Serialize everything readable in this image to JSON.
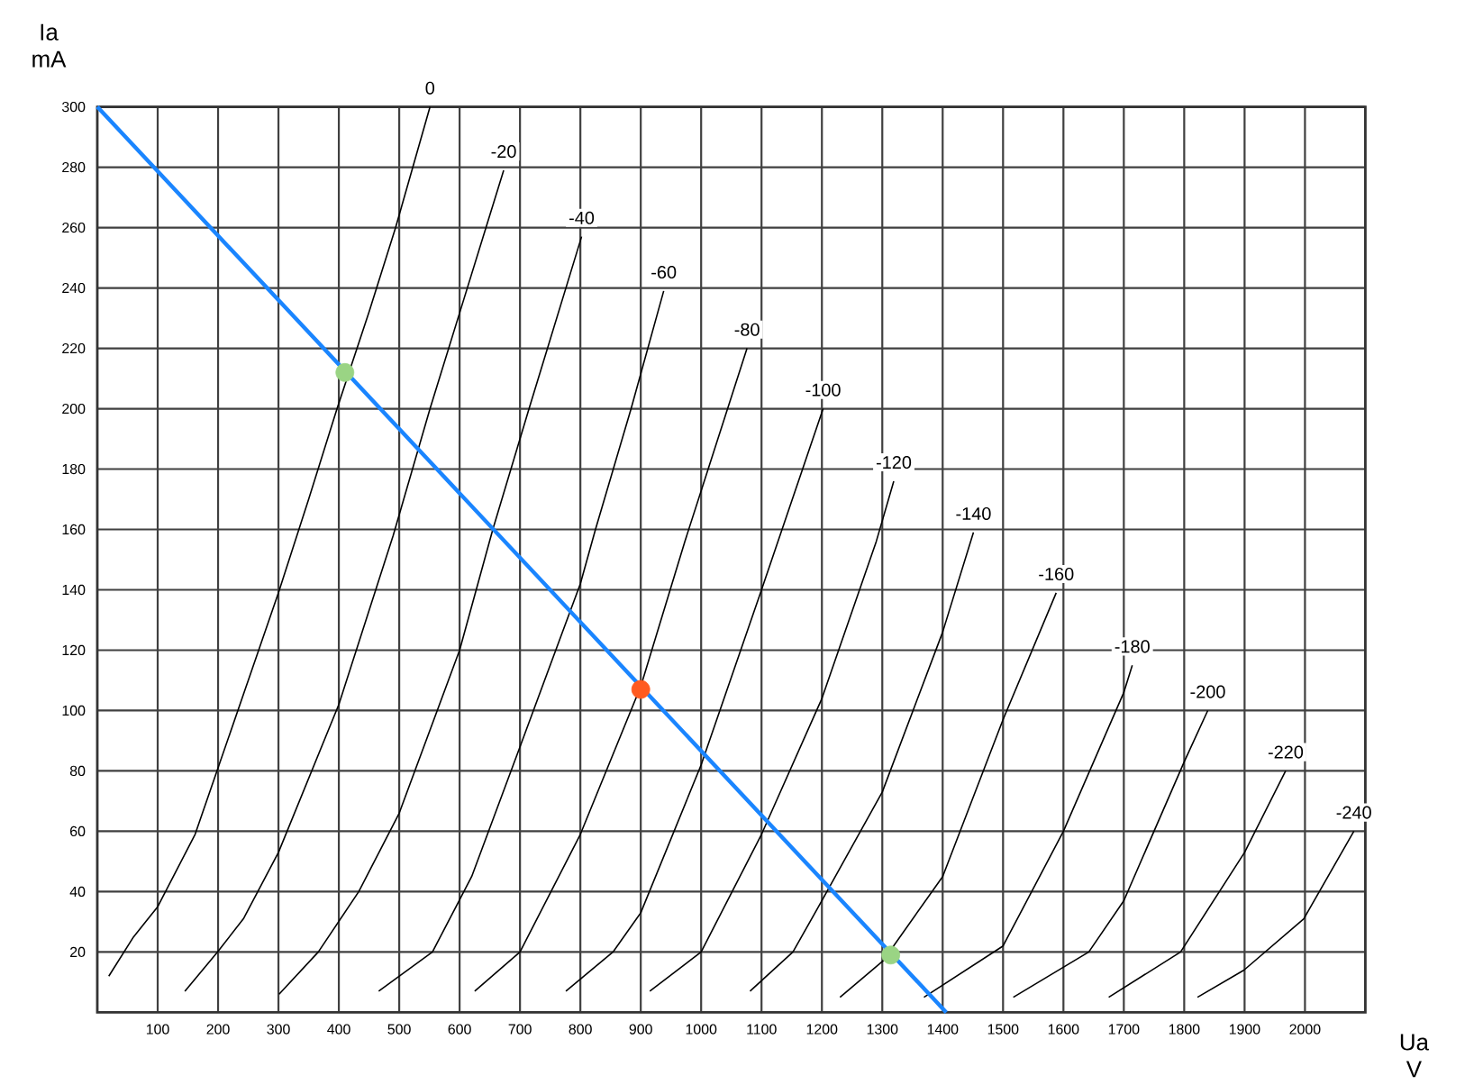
{
  "chart_data": {
    "type": "line",
    "xlabel": "Ua V",
    "ylabel": "Ia mA",
    "xlim": [
      0,
      2100
    ],
    "ylim": [
      0,
      300
    ],
    "xticks": [
      100,
      200,
      300,
      400,
      500,
      600,
      700,
      800,
      900,
      1000,
      1100,
      1200,
      1300,
      1400,
      1500,
      1600,
      1700,
      1800,
      1900,
      2000
    ],
    "yticks": [
      20,
      40,
      60,
      80,
      100,
      120,
      140,
      160,
      180,
      200,
      220,
      240,
      260,
      280,
      300
    ],
    "grid": true,
    "series": [
      {
        "name": "0",
        "color": "#000000",
        "x": [
          19,
          60,
          100,
          162,
          200,
          250,
          300,
          350,
          397,
          450,
          494,
          551
        ],
        "values": [
          12,
          25,
          35,
          59,
          81,
          110,
          139,
          170,
          200,
          232,
          260,
          300
        ]
      },
      {
        "name": "-20",
        "color": "#000000",
        "x": [
          145,
          199,
          242,
          300,
          400,
          490,
          551,
          673
        ],
        "values": [
          7,
          20,
          31,
          53,
          102,
          158,
          200,
          279
        ]
      },
      {
        "name": "-40",
        "color": "#000000",
        "x": [
          301,
          366,
          433,
          500,
          600,
          655,
          715,
          802
        ],
        "values": [
          6,
          20,
          40,
          66,
          120,
          160,
          200,
          257
        ]
      },
      {
        "name": "-60",
        "color": "#000000",
        "x": [
          466,
          555,
          620,
          700,
          800,
          825,
          884,
          938
        ],
        "values": [
          7,
          20,
          45,
          88,
          142,
          160,
          200,
          239
        ]
      },
      {
        "name": "-80",
        "color": "#000000",
        "x": [
          625,
          700,
          800,
          900,
          973,
          1076
        ],
        "values": [
          7,
          20,
          59,
          108,
          156,
          220
        ]
      },
      {
        "name": "-100",
        "color": "#000000",
        "x": [
          776,
          854,
          900,
          1000,
          1100,
          1202
        ],
        "values": [
          7,
          20,
          33,
          82,
          140,
          200
        ]
      },
      {
        "name": "-120",
        "color": "#000000",
        "x": [
          915,
          1000,
          1100,
          1200,
          1290,
          1319
        ],
        "values": [
          7,
          20,
          59,
          104,
          156,
          176
        ]
      },
      {
        "name": "-140",
        "color": "#000000",
        "x": [
          1081,
          1152,
          1200,
          1300,
          1400,
          1451
        ],
        "values": [
          7,
          20,
          37,
          73,
          126,
          159
        ]
      },
      {
        "name": "-160",
        "color": "#000000",
        "x": [
          1230,
          1301,
          1400,
          1500,
          1588
        ],
        "values": [
          5,
          17,
          45,
          97,
          139
        ]
      },
      {
        "name": "-180",
        "color": "#000000",
        "x": [
          1369,
          1500,
          1600,
          1700,
          1714
        ],
        "values": [
          5,
          22,
          60,
          106,
          115
        ]
      },
      {
        "name": "-200",
        "color": "#000000",
        "x": [
          1517,
          1642,
          1700,
          1800,
          1839
        ],
        "values": [
          5,
          20,
          37,
          83,
          100
        ]
      },
      {
        "name": "-220",
        "color": "#000000",
        "x": [
          1675,
          1794,
          1900,
          1968
        ],
        "values": [
          5,
          20,
          53,
          80
        ]
      },
      {
        "name": "-240",
        "color": "#000000",
        "x": [
          1822,
          1899,
          1998,
          2081
        ],
        "values": [
          5,
          14,
          31,
          60
        ]
      },
      {
        "color": "#1a85ff",
        "x": [
          0,
          1406
        ],
        "values": [
          300,
          0
        ]
      },
      {
        "type": "scatter",
        "marker": "circle",
        "colors": [
          "#9ad484",
          "#ff5a1f",
          "#9ad484"
        ],
        "x": [
          410,
          900,
          1314
        ],
        "values": [
          212,
          107,
          19
        ]
      }
    ]
  }
}
